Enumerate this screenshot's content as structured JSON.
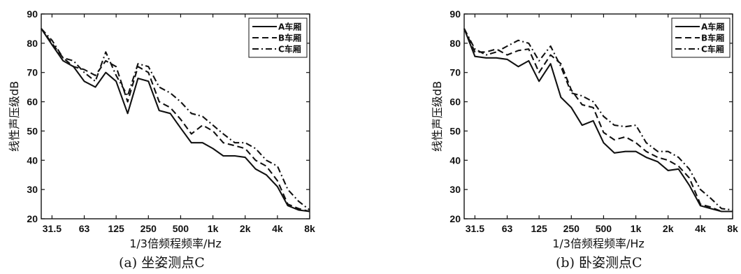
{
  "chart_data": [
    {
      "type": "line",
      "caption": "(a)  坐姿测点C",
      "xlabel": "1/3倍频程频率/Hz",
      "ylabel": "线性声压级dB",
      "ylim": [
        20,
        90
      ],
      "yticks": [
        "20",
        "30",
        "40",
        "50",
        "60",
        "70",
        "80",
        "90"
      ],
      "xtick_labels": [
        "31.5",
        "63",
        "125",
        "250",
        "500",
        "1k",
        "2k",
        "4k",
        "8k"
      ],
      "legend_position": "top-right",
      "series": [
        {
          "name": "A车厢",
          "style": "solid",
          "x": [
            25,
            31.5,
            40,
            50,
            63,
            80,
            100,
            125,
            160,
            200,
            250,
            315,
            400,
            500,
            630,
            800,
            1000,
            1250,
            1600,
            2000,
            2500,
            3150,
            4000,
            5000,
            6300,
            8000
          ],
          "y": [
            85,
            79.5,
            74,
            72,
            67,
            65,
            70,
            67,
            56,
            68,
            67,
            57,
            56,
            51,
            46,
            46,
            44,
            41.5,
            41.5,
            41,
            37,
            35,
            31,
            24.5,
            23,
            22.5
          ]
        },
        {
          "name": "B车厢",
          "style": "dashed",
          "x": [
            25,
            31.5,
            40,
            50,
            63,
            80,
            100,
            125,
            160,
            200,
            250,
            315,
            400,
            500,
            630,
            800,
            1000,
            1250,
            1600,
            2000,
            2500,
            3150,
            4000,
            5000,
            6300,
            8000
          ],
          "y": [
            85,
            80,
            75,
            72,
            71,
            69,
            74,
            72,
            60,
            72,
            70,
            60,
            58,
            54,
            49,
            52,
            50,
            46,
            45,
            44,
            40,
            38,
            33,
            25,
            23.5,
            22.5
          ]
        },
        {
          "name": "C车厢",
          "style": "dashdot",
          "x": [
            25,
            31.5,
            40,
            50,
            63,
            80,
            100,
            125,
            160,
            200,
            250,
            315,
            400,
            500,
            630,
            800,
            1000,
            1250,
            1600,
            2000,
            2500,
            3150,
            4000,
            5000,
            6300,
            8000
          ],
          "y": [
            85,
            81,
            75,
            74,
            70,
            67,
            77,
            69,
            62,
            73,
            72,
            65,
            63,
            60,
            56,
            55,
            52,
            49,
            46,
            46,
            44,
            40,
            38,
            30,
            26,
            23
          ]
        }
      ]
    },
    {
      "type": "line",
      "caption": "(b)  卧姿测点C",
      "xlabel": "1/3倍频程频率/Hz",
      "ylabel": "线性声压级dB",
      "ylim": [
        20,
        90
      ],
      "yticks": [
        "20",
        "30",
        "40",
        "50",
        "60",
        "70",
        "80",
        "90"
      ],
      "xtick_labels": [
        "31.5",
        "63",
        "125",
        "250",
        "500",
        "1k",
        "2k",
        "4k",
        "8k"
      ],
      "legend_position": "top-right",
      "series": [
        {
          "name": "A车厢",
          "style": "solid",
          "x": [
            25,
            31.5,
            40,
            50,
            63,
            80,
            100,
            125,
            160,
            200,
            250,
            315,
            400,
            500,
            630,
            800,
            1000,
            1250,
            1600,
            2000,
            2500,
            3150,
            4000,
            5000,
            6300,
            8000
          ],
          "y": [
            85,
            75.5,
            75,
            75,
            74.5,
            72,
            74,
            67,
            73,
            61.5,
            58,
            52,
            53.5,
            46,
            42.5,
            43,
            43,
            41,
            39.5,
            36.5,
            37,
            31.5,
            24.5,
            23.5,
            22.5,
            22.5
          ]
        },
        {
          "name": "B车厢",
          "style": "dashed",
          "x": [
            25,
            31.5,
            40,
            50,
            63,
            80,
            100,
            125,
            160,
            200,
            250,
            315,
            400,
            500,
            630,
            800,
            1000,
            1250,
            1600,
            2000,
            2500,
            3150,
            4000,
            5000,
            6300,
            8000
          ],
          "y": [
            85,
            77,
            77,
            78,
            76,
            77.5,
            78,
            70,
            76,
            73,
            64,
            59,
            58,
            49.5,
            47,
            48,
            46,
            43,
            41,
            40,
            38,
            34,
            25,
            24,
            22.5,
            22.5
          ]
        },
        {
          "name": "C车厢",
          "style": "dashdot",
          "x": [
            25,
            31.5,
            40,
            50,
            63,
            80,
            100,
            125,
            160,
            200,
            250,
            315,
            400,
            500,
            630,
            800,
            1000,
            1250,
            1600,
            2000,
            2500,
            3150,
            4000,
            5000,
            6300,
            8000
          ],
          "y": [
            85,
            78,
            76,
            77,
            79,
            81,
            80,
            74,
            79,
            72,
            63,
            62,
            60,
            55,
            52,
            51.5,
            52,
            46,
            43,
            43,
            41,
            37,
            30,
            27,
            23.5,
            23
          ]
        }
      ]
    }
  ]
}
